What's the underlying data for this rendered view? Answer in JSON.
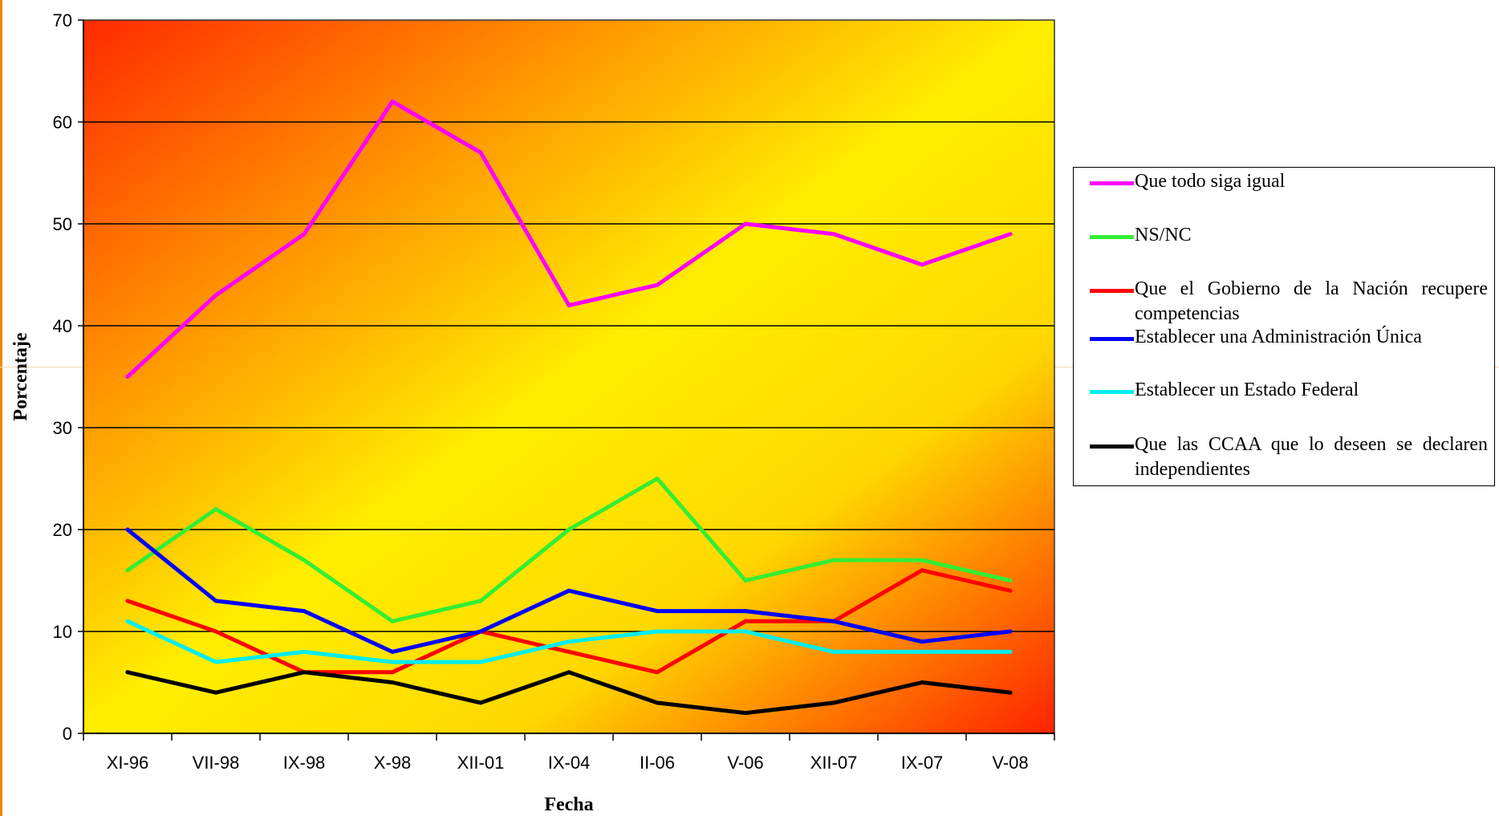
{
  "chart_data": {
    "type": "line",
    "xlabel": "Fecha",
    "ylabel": "Porcentaje",
    "ylim": [
      0,
      70
    ],
    "yticks": [
      0,
      10,
      20,
      30,
      40,
      50,
      60,
      70
    ],
    "grid": true,
    "legend_position": "right",
    "categories": [
      "XI-96",
      "VII-98",
      "IX-98",
      "X-98",
      "XII-01",
      "IX-04",
      "II-06",
      "V-06",
      "XII-07",
      "IX-07",
      "V-08"
    ],
    "series": [
      {
        "name": "Que todo siga igual",
        "color": "#ff00ff",
        "values": [
          35,
          43,
          49,
          62,
          57,
          42,
          44,
          50,
          49,
          46,
          49
        ]
      },
      {
        "name": "NS/NC",
        "color": "#33ee33",
        "values": [
          16,
          22,
          17,
          11,
          13,
          20,
          25,
          15,
          17,
          17,
          15
        ]
      },
      {
        "name": "Que el Gobierno de la Nación recupere competencias",
        "color": "#ff0000",
        "values": [
          13,
          10,
          6,
          6,
          10,
          8,
          6,
          11,
          11,
          16,
          14
        ]
      },
      {
        "name": "Establecer una Administración Única",
        "color": "#0000ff",
        "values": [
          20,
          13,
          12,
          8,
          10,
          14,
          12,
          12,
          11,
          9,
          10
        ]
      },
      {
        "name": "Establecer un Estado Federal",
        "color": "#00eeee",
        "values": [
          11,
          7,
          8,
          7,
          7,
          9,
          10,
          10,
          8,
          8,
          8
        ]
      },
      {
        "name": "Que las CCAA que lo deseen se declaren independientes",
        "color": "#000000",
        "values": [
          6,
          4,
          6,
          5,
          3,
          6,
          3,
          2,
          3,
          5,
          4
        ]
      }
    ]
  }
}
